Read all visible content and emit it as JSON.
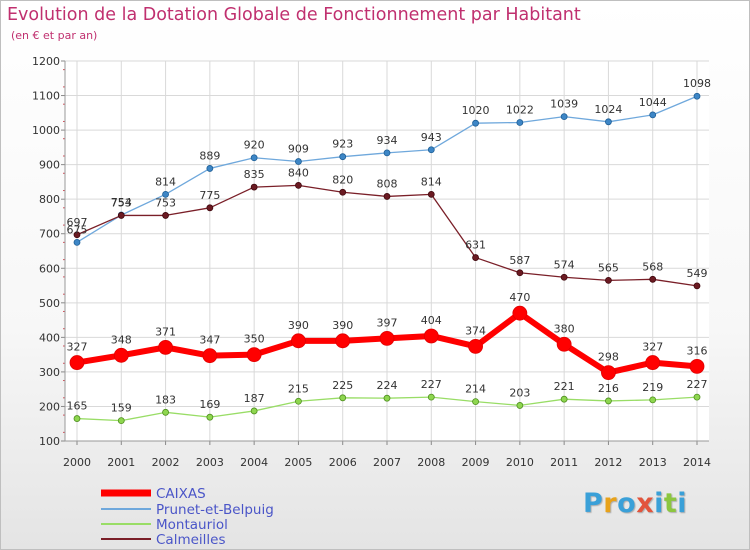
{
  "header": {
    "title": "Evolution de la Dotation Globale de Fonctionnement par Habitant",
    "subtitle": "(en € et par an)"
  },
  "logo": {
    "text": "Proxiti",
    "colors": [
      "#3aa0d8",
      "#e8a21a",
      "#8cc63f",
      "#e2543c"
    ]
  },
  "chart_data": {
    "type": "line",
    "x": [
      "2000",
      "2001",
      "2002",
      "2003",
      "2004",
      "2005",
      "2006",
      "2007",
      "2008",
      "2009",
      "2010",
      "2011",
      "2012",
      "2013",
      "2014"
    ],
    "ylim": [
      100,
      1200
    ],
    "yticks": [
      "100",
      "200",
      "300",
      "400",
      "500",
      "600",
      "700",
      "800",
      "900",
      "1000",
      "1100",
      "1200"
    ],
    "grid": true,
    "legend_position": "bottom-left",
    "series": [
      {
        "name": "CAIXAS",
        "color": "#ff0000",
        "values": [
          327,
          348,
          371,
          347,
          350,
          390,
          390,
          397,
          404,
          374,
          470,
          380,
          298,
          327,
          316
        ],
        "labels": [
          "327",
          "348",
          "371",
          "347",
          "350",
          "390",
          "390",
          "397",
          "404",
          "374",
          "470",
          "380",
          "298",
          "327",
          "316"
        ]
      },
      {
        "name": "Prunet-et-Belpuig",
        "color": "#6fa8dc",
        "values": [
          675,
          754,
          814,
          889,
          920,
          909,
          923,
          934,
          943,
          1020,
          1022,
          1039,
          1024,
          1044,
          1098
        ],
        "labels": [
          "675",
          "754",
          "814",
          "889",
          "920",
          "909",
          "923",
          "934",
          "943",
          "1020",
          "1022",
          "1039",
          "1024",
          "1044",
          "1098"
        ]
      },
      {
        "name": "Montauriol",
        "color": "#99dd66",
        "values": [
          165,
          159,
          183,
          169,
          187,
          215,
          225,
          224,
          227,
          214,
          203,
          221,
          216,
          219,
          227
        ],
        "labels": [
          "165",
          "159",
          "183",
          "169",
          "187",
          "215",
          "225",
          "224",
          "227",
          "214",
          "203",
          "221",
          "216",
          "219",
          "227"
        ]
      },
      {
        "name": "Calmeilles",
        "color": "#7a1f28",
        "values": [
          697,
          753,
          753,
          775,
          835,
          840,
          820,
          808,
          814,
          631,
          587,
          574,
          565,
          568,
          549
        ],
        "labels": [
          "697",
          "753",
          "753",
          "775",
          "835",
          "840",
          "820",
          "808",
          "814",
          "631",
          "587",
          "574",
          "565",
          "568",
          "549"
        ]
      }
    ]
  }
}
